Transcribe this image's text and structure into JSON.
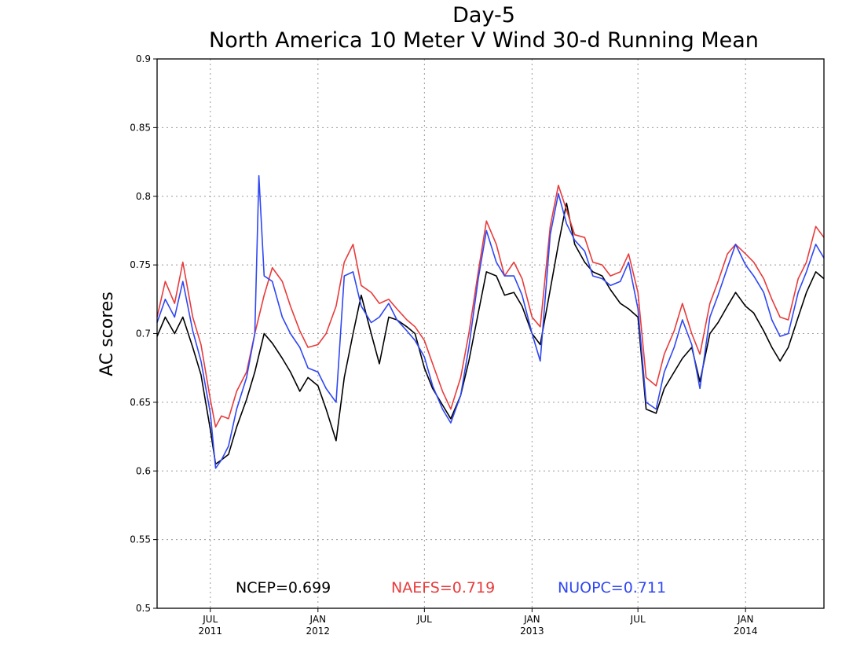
{
  "chart_data": {
    "type": "line",
    "title": "Day-5",
    "subtitle": "North America 10 Meter V Wind 30-d Running Mean",
    "xlabel": "",
    "ylabel": "AC scores",
    "xlim": [
      "2011-04-01",
      "2014-05-15"
    ],
    "ylim": [
      0.5,
      0.9
    ],
    "grid": true,
    "y_ticks": [
      0.5,
      0.55,
      0.6,
      0.65,
      0.7,
      0.75,
      0.8,
      0.85,
      0.9
    ],
    "y_tick_labels": [
      "0.5",
      "0.55",
      "0.6",
      "0.65",
      "0.7",
      "0.75",
      "0.8",
      "0.85",
      "0.9"
    ],
    "x_ticks": [
      {
        "date": "2011-07-01",
        "label": "JUL",
        "sublabel": "2011"
      },
      {
        "date": "2012-01-01",
        "label": "JAN",
        "sublabel": "2012"
      },
      {
        "date": "2012-07-01",
        "label": "JUL",
        "sublabel": ""
      },
      {
        "date": "2013-01-01",
        "label": "JAN",
        "sublabel": "2013"
      },
      {
        "date": "2013-07-01",
        "label": "JUL",
        "sublabel": ""
      },
      {
        "date": "2014-01-01",
        "label": "JAN",
        "sublabel": "2014"
      }
    ],
    "legend_placement": "bottom-inside",
    "series": [
      {
        "name": "NCEP",
        "legend_label": "NCEP=0.699",
        "color": "#000000",
        "x": [
          "2011-04-01",
          "2011-04-15",
          "2011-05-01",
          "2011-05-15",
          "2011-06-01",
          "2011-06-15",
          "2011-07-01",
          "2011-07-10",
          "2011-07-20",
          "2011-08-01",
          "2011-08-15",
          "2011-09-01",
          "2011-09-15",
          "2011-10-01",
          "2011-10-15",
          "2011-11-01",
          "2011-11-15",
          "2011-12-01",
          "2011-12-15",
          "2012-01-01",
          "2012-01-15",
          "2012-02-01",
          "2012-02-15",
          "2012-03-01",
          "2012-03-15",
          "2012-04-01",
          "2012-04-15",
          "2012-05-01",
          "2012-05-15",
          "2012-06-01",
          "2012-06-15",
          "2012-07-01",
          "2012-07-15",
          "2012-08-01",
          "2012-08-15",
          "2012-09-01",
          "2012-09-15",
          "2012-10-01",
          "2012-10-15",
          "2012-11-01",
          "2012-11-15",
          "2012-12-01",
          "2012-12-15",
          "2013-01-01",
          "2013-01-15",
          "2013-02-01",
          "2013-02-15",
          "2013-03-01",
          "2013-03-15",
          "2013-04-01",
          "2013-04-15",
          "2013-05-01",
          "2013-05-15",
          "2013-06-01",
          "2013-06-15",
          "2013-07-01",
          "2013-07-15",
          "2013-08-01",
          "2013-08-15",
          "2013-09-01",
          "2013-09-15",
          "2013-10-01",
          "2013-10-15",
          "2013-11-01",
          "2013-11-15",
          "2013-12-01",
          "2013-12-15",
          "2014-01-01",
          "2014-01-15",
          "2014-02-01",
          "2014-02-15",
          "2014-03-01",
          "2014-03-15",
          "2014-04-01",
          "2014-04-15",
          "2014-05-01",
          "2014-05-15"
        ],
        "values": [
          0.698,
          0.712,
          0.7,
          0.712,
          0.69,
          0.67,
          0.63,
          0.605,
          0.608,
          0.612,
          0.632,
          0.652,
          0.672,
          0.7,
          0.693,
          0.682,
          0.672,
          0.658,
          0.668,
          0.662,
          0.645,
          0.622,
          0.668,
          0.7,
          0.728,
          0.7,
          0.678,
          0.712,
          0.71,
          0.705,
          0.7,
          0.675,
          0.66,
          0.648,
          0.638,
          0.655,
          0.68,
          0.715,
          0.745,
          0.742,
          0.728,
          0.73,
          0.72,
          0.7,
          0.692,
          0.732,
          0.765,
          0.795,
          0.765,
          0.752,
          0.745,
          0.742,
          0.732,
          0.722,
          0.718,
          0.712,
          0.645,
          0.642,
          0.66,
          0.672,
          0.682,
          0.69,
          0.665,
          0.7,
          0.708,
          0.72,
          0.73,
          0.72,
          0.715,
          0.702,
          0.69,
          0.68,
          0.69,
          0.712,
          0.73,
          0.745,
          0.74
        ]
      },
      {
        "name": "NAEFS",
        "legend_label": "NAEFS=0.719",
        "color": "#e83b3b",
        "x": [
          "2011-04-01",
          "2011-04-15",
          "2011-05-01",
          "2011-05-15",
          "2011-06-01",
          "2011-06-15",
          "2011-07-01",
          "2011-07-10",
          "2011-07-20",
          "2011-08-01",
          "2011-08-15",
          "2011-09-01",
          "2011-09-15",
          "2011-10-01",
          "2011-10-15",
          "2011-11-01",
          "2011-11-15",
          "2011-12-01",
          "2011-12-15",
          "2012-01-01",
          "2012-01-15",
          "2012-02-01",
          "2012-02-15",
          "2012-03-01",
          "2012-03-15",
          "2012-04-01",
          "2012-04-15",
          "2012-05-01",
          "2012-05-15",
          "2012-06-01",
          "2012-06-15",
          "2012-07-01",
          "2012-07-15",
          "2012-08-01",
          "2012-08-15",
          "2012-09-01",
          "2012-09-15",
          "2012-10-01",
          "2012-10-15",
          "2012-11-01",
          "2012-11-15",
          "2012-12-01",
          "2012-12-15",
          "2013-01-01",
          "2013-01-15",
          "2013-02-01",
          "2013-02-15",
          "2013-03-01",
          "2013-03-15",
          "2013-04-01",
          "2013-04-15",
          "2013-05-01",
          "2013-05-15",
          "2013-06-01",
          "2013-06-15",
          "2013-07-01",
          "2013-07-15",
          "2013-08-01",
          "2013-08-15",
          "2013-09-01",
          "2013-09-15",
          "2013-10-01",
          "2013-10-15",
          "2013-11-01",
          "2013-11-15",
          "2013-12-01",
          "2013-12-15",
          "2014-01-01",
          "2014-01-15",
          "2014-02-01",
          "2014-02-15",
          "2014-03-01",
          "2014-03-15",
          "2014-04-01",
          "2014-04-15",
          "2014-05-01",
          "2014-05-15"
        ],
        "values": [
          0.712,
          0.738,
          0.722,
          0.752,
          0.712,
          0.692,
          0.652,
          0.632,
          0.64,
          0.638,
          0.658,
          0.672,
          0.7,
          0.728,
          0.748,
          0.738,
          0.72,
          0.702,
          0.69,
          0.692,
          0.7,
          0.72,
          0.752,
          0.765,
          0.735,
          0.73,
          0.722,
          0.725,
          0.718,
          0.71,
          0.705,
          0.695,
          0.678,
          0.658,
          0.645,
          0.668,
          0.7,
          0.745,
          0.782,
          0.765,
          0.742,
          0.752,
          0.74,
          0.712,
          0.705,
          0.778,
          0.808,
          0.79,
          0.772,
          0.77,
          0.752,
          0.75,
          0.742,
          0.745,
          0.758,
          0.73,
          0.668,
          0.662,
          0.685,
          0.702,
          0.722,
          0.7,
          0.685,
          0.722,
          0.738,
          0.758,
          0.765,
          0.758,
          0.752,
          0.74,
          0.725,
          0.712,
          0.71,
          0.74,
          0.752,
          0.778,
          0.77
        ]
      },
      {
        "name": "NUOPC",
        "legend_label": "NUOPC=0.711",
        "color": "#2f47f2",
        "x": [
          "2011-04-01",
          "2011-04-15",
          "2011-05-01",
          "2011-05-15",
          "2011-06-01",
          "2011-06-15",
          "2011-07-01",
          "2011-07-10",
          "2011-07-20",
          "2011-08-01",
          "2011-08-15",
          "2011-09-01",
          "2011-09-15",
          "2011-09-22",
          "2011-10-01",
          "2011-10-15",
          "2011-11-01",
          "2011-11-15",
          "2011-12-01",
          "2011-12-15",
          "2012-01-01",
          "2012-01-15",
          "2012-02-01",
          "2012-02-15",
          "2012-03-01",
          "2012-03-15",
          "2012-04-01",
          "2012-04-15",
          "2012-05-01",
          "2012-05-15",
          "2012-06-01",
          "2012-06-15",
          "2012-07-01",
          "2012-07-15",
          "2012-08-01",
          "2012-08-15",
          "2012-09-01",
          "2012-09-15",
          "2012-10-01",
          "2012-10-15",
          "2012-11-01",
          "2012-11-15",
          "2012-12-01",
          "2012-12-15",
          "2013-01-01",
          "2013-01-15",
          "2013-02-01",
          "2013-02-15",
          "2013-03-01",
          "2013-03-15",
          "2013-04-01",
          "2013-04-15",
          "2013-05-01",
          "2013-05-15",
          "2013-06-01",
          "2013-06-15",
          "2013-07-01",
          "2013-07-15",
          "2013-08-01",
          "2013-08-15",
          "2013-09-01",
          "2013-09-15",
          "2013-10-01",
          "2013-10-15",
          "2013-11-01",
          "2013-11-15",
          "2013-12-01",
          "2013-12-15",
          "2014-01-01",
          "2014-01-15",
          "2014-02-01",
          "2014-02-15",
          "2014-03-01",
          "2014-03-15",
          "2014-04-01",
          "2014-04-15",
          "2014-05-01",
          "2014-05-15"
        ],
        "values": [
          0.708,
          0.725,
          0.712,
          0.738,
          0.702,
          0.68,
          0.642,
          0.602,
          0.608,
          0.618,
          0.645,
          0.668,
          0.7,
          0.815,
          0.742,
          0.738,
          0.712,
          0.7,
          0.69,
          0.675,
          0.672,
          0.66,
          0.65,
          0.742,
          0.745,
          0.72,
          0.708,
          0.712,
          0.722,
          0.71,
          0.702,
          0.695,
          0.683,
          0.662,
          0.645,
          0.635,
          0.655,
          0.69,
          0.74,
          0.775,
          0.752,
          0.742,
          0.742,
          0.728,
          0.7,
          0.68,
          0.772,
          0.802,
          0.78,
          0.768,
          0.76,
          0.742,
          0.74,
          0.735,
          0.738,
          0.752,
          0.718,
          0.65,
          0.645,
          0.672,
          0.69,
          0.71,
          0.692,
          0.66,
          0.712,
          0.728,
          0.748,
          0.765,
          0.75,
          0.742,
          0.73,
          0.71,
          0.698,
          0.7,
          0.73,
          0.745,
          0.765,
          0.755
        ]
      }
    ]
  }
}
